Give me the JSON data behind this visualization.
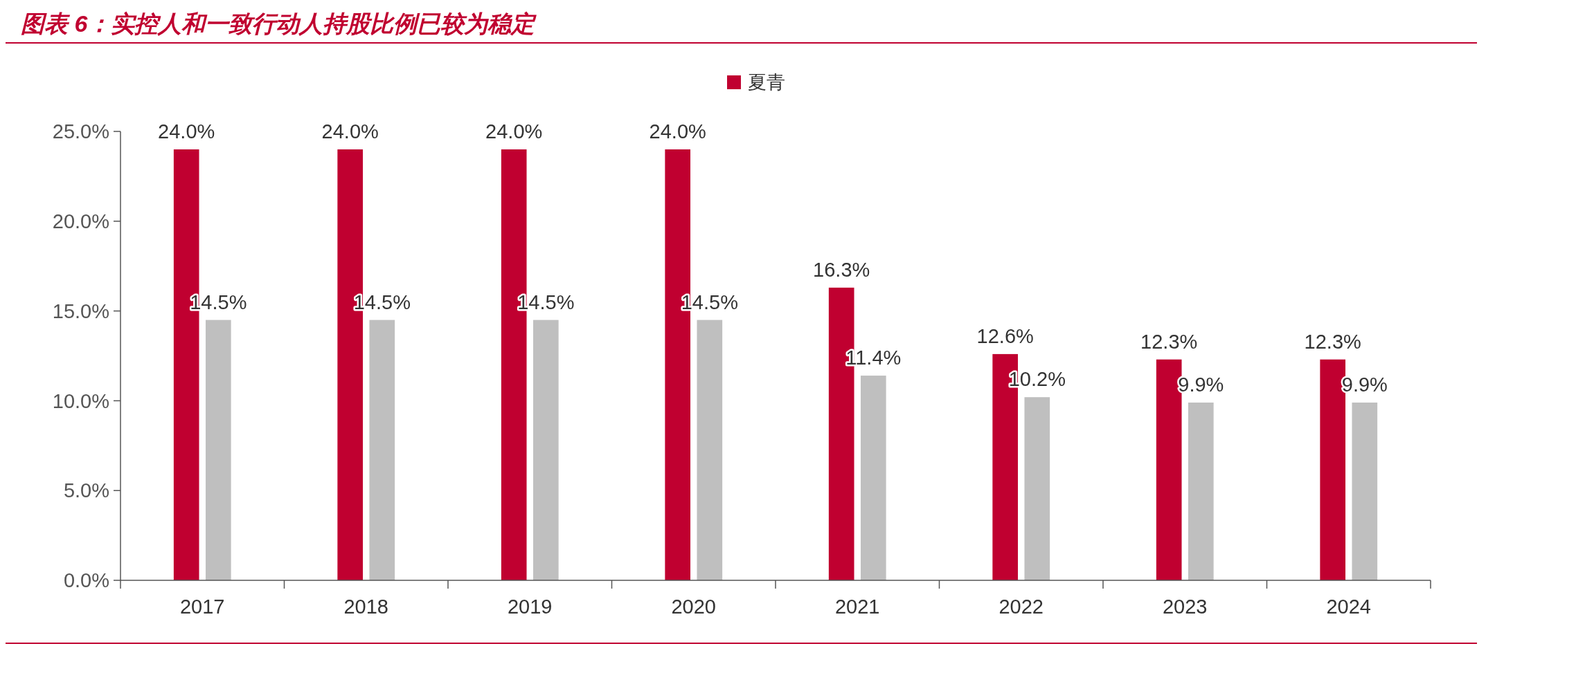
{
  "chart_data": {
    "type": "bar",
    "title": "图表 6：实控人和一致行动人持股比例已较为稳定",
    "categories": [
      "2017",
      "2018",
      "2019",
      "2020",
      "2021",
      "2022",
      "2023",
      "2024"
    ],
    "series": [
      {
        "name": "夏青",
        "color": "#c00030",
        "values": [
          24.0,
          24.0,
          24.0,
          24.0,
          16.3,
          12.6,
          12.3,
          12.3
        ],
        "value_labels": [
          "24.0%",
          "24.0%",
          "24.0%",
          "24.0%",
          "16.3%",
          "12.6%",
          "12.3%",
          "12.3%"
        ]
      },
      {
        "color": "#bfbfbf",
        "values": [
          14.5,
          14.5,
          14.5,
          14.5,
          11.4,
          10.2,
          9.9,
          9.9
        ],
        "value_labels": [
          "14.5%",
          "14.5%",
          "14.5%",
          "14.5%",
          "11.4%",
          "10.2%",
          "9.9%",
          "9.9%"
        ]
      }
    ],
    "ylim": [
      0,
      25
    ],
    "yticks": [
      {
        "value": 0,
        "label": "0.0%"
      },
      {
        "value": 5,
        "label": "5.0%"
      },
      {
        "value": 10,
        "label": "10.0%"
      },
      {
        "value": 15,
        "label": "15.0%"
      },
      {
        "value": 20,
        "label": "20.0%"
      },
      {
        "value": 25,
        "label": "25.0%"
      }
    ],
    "legend": "top",
    "grid": false
  }
}
